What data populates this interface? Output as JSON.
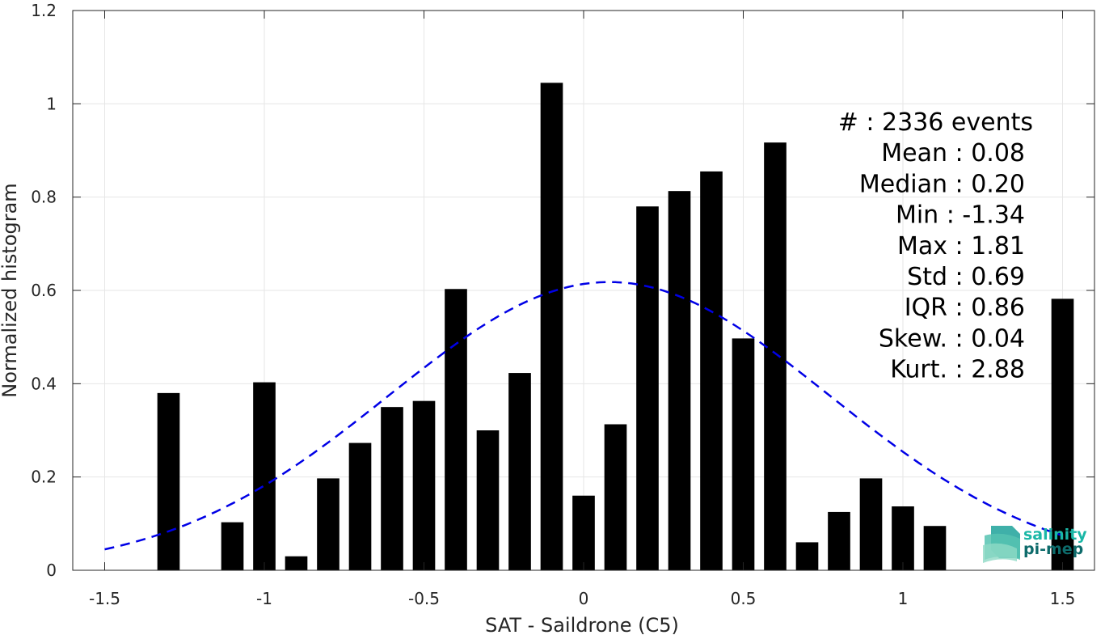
{
  "chart_data": {
    "type": "bar",
    "xlabel": "SAT - Saildrone (C5)",
    "ylabel": "Normalized histogram",
    "xlim": [
      -1.6,
      1.6
    ],
    "ylim": [
      0,
      1.2
    ],
    "xticks": [
      -1.5,
      -1,
      -0.5,
      0,
      0.5,
      1,
      1.5
    ],
    "xtick_labels": [
      "-1.5",
      "-1",
      "-0.5",
      "0",
      "0.5",
      "1",
      "1.5"
    ],
    "yticks": [
      0,
      0.2,
      0.4,
      0.6,
      0.8,
      1,
      1.2
    ],
    "ytick_labels": [
      "0",
      "0.2",
      "0.4",
      "0.6",
      "0.8",
      "1",
      "1.2"
    ],
    "grid": true,
    "bar_color": "#000000",
    "bar_width": 0.07,
    "bars": [
      {
        "x": -1.3,
        "value": 0.38
      },
      {
        "x": -1.1,
        "value": 0.103
      },
      {
        "x": -1.0,
        "value": 0.403
      },
      {
        "x": -0.9,
        "value": 0.03
      },
      {
        "x": -0.8,
        "value": 0.197
      },
      {
        "x": -0.7,
        "value": 0.273
      },
      {
        "x": -0.6,
        "value": 0.35
      },
      {
        "x": -0.5,
        "value": 0.363
      },
      {
        "x": -0.4,
        "value": 0.603
      },
      {
        "x": -0.3,
        "value": 0.3
      },
      {
        "x": -0.2,
        "value": 0.423
      },
      {
        "x": -0.1,
        "value": 1.045
      },
      {
        "x": 0.0,
        "value": 0.16
      },
      {
        "x": 0.1,
        "value": 0.313
      },
      {
        "x": 0.2,
        "value": 0.78
      },
      {
        "x": 0.3,
        "value": 0.813
      },
      {
        "x": 0.4,
        "value": 0.855
      },
      {
        "x": 0.5,
        "value": 0.497
      },
      {
        "x": 0.6,
        "value": 0.917
      },
      {
        "x": 0.7,
        "value": 0.06
      },
      {
        "x": 0.8,
        "value": 0.125
      },
      {
        "x": 0.9,
        "value": 0.197
      },
      {
        "x": 1.0,
        "value": 0.137
      },
      {
        "x": 1.1,
        "value": 0.095
      },
      {
        "x": 1.5,
        "value": 0.582
      }
    ],
    "fit_curve": {
      "style": "dashed",
      "color": "#0000e6",
      "mean": 0.08,
      "std": 0.69,
      "peak": 0.618,
      "x_range": [
        -1.5,
        1.5
      ]
    },
    "stats": [
      "#  : 2336 events",
      "Mean : 0.08",
      "Median : 0.20",
      "Min : -1.34",
      "Max : 1.81",
      "Std : 0.69",
      "IQR : 0.86",
      "Skew. : 0.04",
      "Kurt. : 2.88"
    ]
  },
  "logo": {
    "line1": "salinity",
    "line2": "pi-mep",
    "color1": "#1ab7a6",
    "color2": "#0d6b6b"
  }
}
